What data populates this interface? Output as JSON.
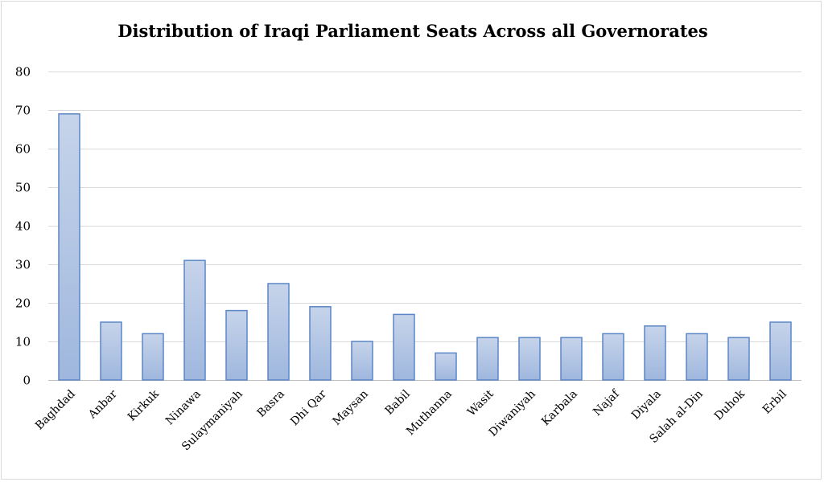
{
  "chart_data": {
    "type": "bar",
    "title": "Distribution of Iraqi Parliament Seats Across all Governorates",
    "xlabel": "",
    "ylabel": "",
    "ylim": [
      0,
      80
    ],
    "yticks": [
      0,
      10,
      20,
      30,
      40,
      50,
      60,
      70,
      80
    ],
    "grid": true,
    "legend": "none",
    "categories": [
      "Baghdad",
      "Anbar",
      "Kirkuk",
      "Ninawa",
      "Sulaymaniyah",
      "Basra",
      "Dhi Qar",
      "Maysan",
      "Babil",
      "Muthanna",
      "Wasit",
      "Diwaniyah",
      "Karbala",
      "Najaf",
      "Diyala",
      "Salah al-Din",
      "Duhok",
      "Erbil"
    ],
    "values": [
      69,
      15,
      12,
      31,
      18,
      25,
      19,
      10,
      17,
      7,
      11,
      11,
      11,
      12,
      14,
      12,
      11,
      15
    ]
  },
  "colors": {
    "bar_top": "#c6d4ea",
    "bar_bottom": "#9fb7de",
    "bar_border": "#5b86c5",
    "grid": "#d9d9d9",
    "axis": "#bfbfbf"
  }
}
